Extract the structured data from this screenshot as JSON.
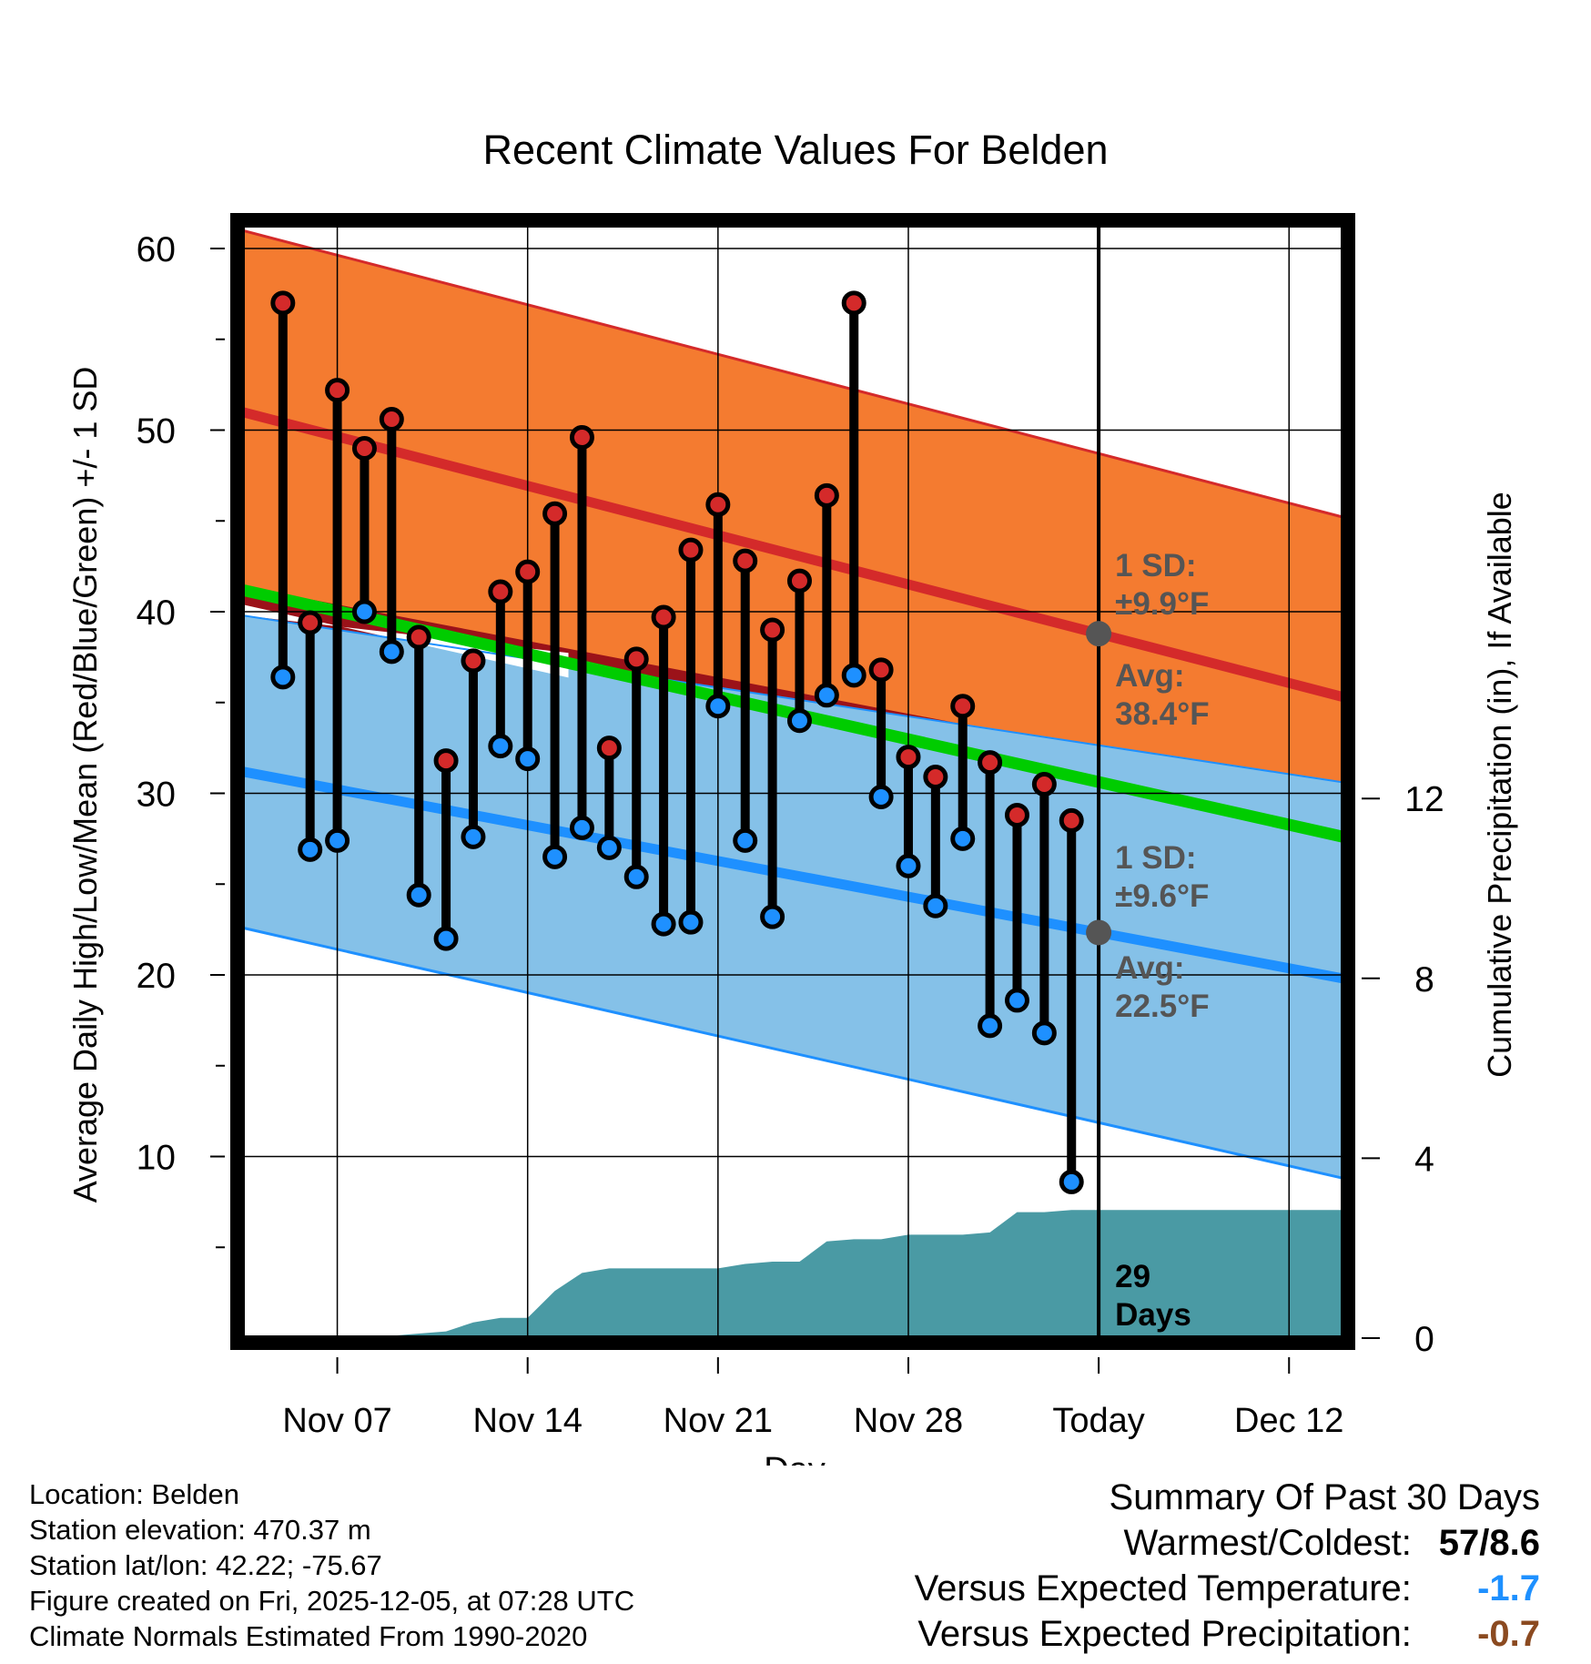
{
  "chart_data": {
    "type": "line",
    "title": "Recent Climate Values For Belden",
    "xlabel": "Day",
    "ylabel_left": "Average Daily High/Low/Mean (Red/Blue/Green) +/- 1 SD",
    "ylabel_right": "Cumulative Precipitation (in), If Available",
    "x_ticks": [
      {
        "day": 7,
        "label": "Nov 07"
      },
      {
        "day": 14,
        "label": "Nov 14"
      },
      {
        "day": 21,
        "label": "Nov 21"
      },
      {
        "day": 28,
        "label": "Nov 28"
      },
      {
        "day": 35,
        "label": "Today"
      },
      {
        "day": 42,
        "label": "Dec 12"
      }
    ],
    "xlim": [
      3.5,
      44.0
    ],
    "ylim_left": [
      0,
      62
    ],
    "ylim_right": [
      0,
      24.8
    ],
    "left_ticks": [
      10,
      20,
      30,
      40,
      50,
      60
    ],
    "right_ticks": [
      0,
      4,
      8,
      12
    ],
    "today_day": 35,
    "normal_high": {
      "start": 51.0,
      "end": 35.3,
      "sd_upper_start": 61.0,
      "sd_upper_end": 45.2
    },
    "normal_low": {
      "start": 31.2,
      "end": 19.8,
      "sd_lower_start": 22.6,
      "sd_lower_end": 8.8
    },
    "normal_mean": {
      "start": 41.2,
      "end": 27.6
    },
    "observed": {
      "days": [
        5,
        6,
        7,
        8,
        9,
        10,
        11,
        12,
        13,
        14,
        15,
        16,
        17,
        18,
        19,
        20,
        21,
        22,
        23,
        24,
        25,
        26,
        27,
        28,
        29,
        30,
        31,
        32,
        33,
        34
      ],
      "highs": [
        57.0,
        39.4,
        52.2,
        49.0,
        50.6,
        38.6,
        31.8,
        37.3,
        41.1,
        42.2,
        45.4,
        49.6,
        32.5,
        37.4,
        39.7,
        43.4,
        45.9,
        42.8,
        39.0,
        41.7,
        46.4,
        57.0,
        36.8,
        32.0,
        30.9,
        34.8,
        31.7,
        28.8,
        30.5,
        28.5
      ],
      "lows": [
        36.4,
        26.9,
        27.4,
        40.0,
        37.8,
        24.4,
        22.0,
        27.6,
        32.6,
        31.9,
        26.5,
        28.1,
        27.0,
        25.4,
        22.8,
        22.9,
        34.8,
        27.4,
        23.2,
        34.0,
        35.4,
        36.5,
        29.8,
        26.0,
        23.8,
        27.5,
        17.2,
        18.6,
        16.8,
        8.6
      ]
    },
    "precip": {
      "days": [
        3.5,
        8,
        9,
        10,
        11,
        12,
        13,
        14,
        15,
        16,
        17,
        18,
        19,
        20,
        21,
        22,
        23,
        24,
        25,
        26,
        27,
        28,
        29,
        30,
        31,
        32,
        33,
        34,
        35,
        44
      ],
      "values": [
        0,
        0,
        0.05,
        0.1,
        0.15,
        0.35,
        0.45,
        0.45,
        1.05,
        1.45,
        1.55,
        1.55,
        1.55,
        1.55,
        1.55,
        1.65,
        1.7,
        1.7,
        2.15,
        2.2,
        2.2,
        2.3,
        2.3,
        2.3,
        2.35,
        2.8,
        2.8,
        2.85,
        2.85,
        2.85
      ]
    },
    "annotations": {
      "high_sd": "1 SD:",
      "high_sd_val": "±9.9°F",
      "high_avg": "Avg:",
      "high_avg_val": "38.4°F",
      "low_sd": "1 SD:",
      "low_sd_val": "±9.6°F",
      "low_avg": "Avg:",
      "low_avg_val": "22.5°F",
      "days_num": "29",
      "days_word": "Days"
    },
    "colors": {
      "high_band": "#f47b30",
      "high_line": "#d42a2a",
      "low_band": "#85c1e8",
      "low_line": "#1e90ff",
      "mean_line": "#00cc00",
      "mean_gap": "#9b1219",
      "precip": "#4a9aa4",
      "annotation": "#555555",
      "today_dot": "#555555"
    }
  },
  "info": {
    "location": "Location: Belden",
    "elevation": "Station elevation: 470.37 m",
    "latlon": "Station lat/lon: 42.22; -75.67",
    "created": "Figure created on Fri, 2025-12-05, at 07:28 UTC",
    "normals": "Climate Normals Estimated From 1990-2020"
  },
  "summary": {
    "title": "Summary Of Past 30 Days",
    "warmest_label": "Warmest/Coldest:",
    "warmest_value": "57/8.6",
    "temp_label": "Versus Expected Temperature:",
    "temp_value": "-1.7",
    "temp_color": "#1e90ff",
    "precip_label": "Versus Expected Precipitation:",
    "precip_value": "-0.7",
    "precip_color": "#8b4a20"
  }
}
